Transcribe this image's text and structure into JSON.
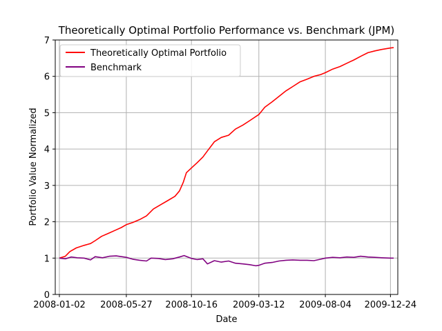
{
  "chart_data": {
    "type": "line",
    "title": "Theoretically Optimal Portfolio Performance vs. Benchmark (JPM)",
    "xlabel": "Date",
    "ylabel": "Portfolio Value Normalized",
    "xlim": [
      "2008-01-02",
      "2009-12-31"
    ],
    "ylim": [
      0,
      7
    ],
    "grid": true,
    "legend_position": "top-left",
    "x_ticks": [
      "2008-01-02",
      "2008-05-27",
      "2008-10-16",
      "2009-03-12",
      "2009-08-04",
      "2009-12-24"
    ],
    "y_ticks": [
      "0",
      "1",
      "2",
      "3",
      "4",
      "5",
      "6",
      "7"
    ],
    "series": [
      {
        "name": "Theoretically Optimal Portfolio",
        "color": "#ff0000",
        "points": [
          [
            "2008-01-02",
            1.0
          ],
          [
            "2008-01-15",
            1.05
          ],
          [
            "2008-01-25",
            1.18
          ],
          [
            "2008-02-08",
            1.28
          ],
          [
            "2008-02-25",
            1.35
          ],
          [
            "2008-03-10",
            1.4
          ],
          [
            "2008-03-20",
            1.48
          ],
          [
            "2008-04-03",
            1.6
          ],
          [
            "2008-04-18",
            1.68
          ],
          [
            "2008-05-02",
            1.76
          ],
          [
            "2008-05-16",
            1.84
          ],
          [
            "2008-05-27",
            1.92
          ],
          [
            "2008-06-10",
            1.98
          ],
          [
            "2008-06-25",
            2.06
          ],
          [
            "2008-07-10",
            2.16
          ],
          [
            "2008-07-25",
            2.35
          ],
          [
            "2008-08-10",
            2.47
          ],
          [
            "2008-08-25",
            2.58
          ],
          [
            "2008-09-10",
            2.7
          ],
          [
            "2008-09-20",
            2.85
          ],
          [
            "2008-09-28",
            3.08
          ],
          [
            "2008-10-05",
            3.35
          ],
          [
            "2008-10-16",
            3.48
          ],
          [
            "2008-10-28",
            3.62
          ],
          [
            "2008-11-10",
            3.78
          ],
          [
            "2008-11-20",
            3.95
          ],
          [
            "2008-12-05",
            4.2
          ],
          [
            "2008-12-20",
            4.32
          ],
          [
            "2009-01-05",
            4.38
          ],
          [
            "2009-01-20",
            4.55
          ],
          [
            "2009-02-05",
            4.66
          ],
          [
            "2009-02-20",
            4.78
          ],
          [
            "2009-03-12",
            4.95
          ],
          [
            "2009-03-25",
            5.15
          ],
          [
            "2009-04-10",
            5.3
          ],
          [
            "2009-04-25",
            5.45
          ],
          [
            "2009-05-10",
            5.6
          ],
          [
            "2009-05-25",
            5.72
          ],
          [
            "2009-06-10",
            5.85
          ],
          [
            "2009-06-25",
            5.92
          ],
          [
            "2009-07-10",
            6.0
          ],
          [
            "2009-07-25",
            6.05
          ],
          [
            "2009-08-04",
            6.1
          ],
          [
            "2009-08-20",
            6.2
          ],
          [
            "2009-09-05",
            6.27
          ],
          [
            "2009-09-20",
            6.36
          ],
          [
            "2009-10-05",
            6.45
          ],
          [
            "2009-10-20",
            6.55
          ],
          [
            "2009-11-05",
            6.65
          ],
          [
            "2009-11-20",
            6.7
          ],
          [
            "2009-12-05",
            6.74
          ],
          [
            "2009-12-24",
            6.78
          ],
          [
            "2009-12-31",
            6.79
          ]
        ]
      },
      {
        "name": "Benchmark",
        "color": "#800080",
        "points": [
          [
            "2008-01-02",
            1.0
          ],
          [
            "2008-01-15",
            0.98
          ],
          [
            "2008-01-28",
            1.03
          ],
          [
            "2008-02-10",
            1.01
          ],
          [
            "2008-02-25",
            1.0
          ],
          [
            "2008-03-10",
            0.95
          ],
          [
            "2008-03-20",
            1.04
          ],
          [
            "2008-04-05",
            1.01
          ],
          [
            "2008-04-20",
            1.05
          ],
          [
            "2008-05-05",
            1.06
          ],
          [
            "2008-05-27",
            1.02
          ],
          [
            "2008-06-10",
            0.97
          ],
          [
            "2008-06-25",
            0.94
          ],
          [
            "2008-07-10",
            0.92
          ],
          [
            "2008-07-20",
            1.0
          ],
          [
            "2008-08-05",
            0.99
          ],
          [
            "2008-08-20",
            0.96
          ],
          [
            "2008-09-05",
            0.98
          ],
          [
            "2008-09-20",
            1.03
          ],
          [
            "2008-09-30",
            1.07
          ],
          [
            "2008-10-16",
            0.99
          ],
          [
            "2008-10-28",
            0.96
          ],
          [
            "2008-11-10",
            0.98
          ],
          [
            "2008-11-20",
            0.84
          ],
          [
            "2008-12-05",
            0.93
          ],
          [
            "2008-12-20",
            0.89
          ],
          [
            "2009-01-05",
            0.92
          ],
          [
            "2009-01-20",
            0.86
          ],
          [
            "2009-02-05",
            0.84
          ],
          [
            "2009-02-20",
            0.82
          ],
          [
            "2009-03-05",
            0.79
          ],
          [
            "2009-03-12",
            0.8
          ],
          [
            "2009-03-25",
            0.86
          ],
          [
            "2009-04-10",
            0.88
          ],
          [
            "2009-04-25",
            0.92
          ],
          [
            "2009-05-10",
            0.94
          ],
          [
            "2009-05-25",
            0.95
          ],
          [
            "2009-06-10",
            0.94
          ],
          [
            "2009-06-25",
            0.94
          ],
          [
            "2009-07-10",
            0.93
          ],
          [
            "2009-07-25",
            0.97
          ],
          [
            "2009-08-04",
            1.0
          ],
          [
            "2009-08-20",
            1.02
          ],
          [
            "2009-09-05",
            1.01
          ],
          [
            "2009-09-20",
            1.03
          ],
          [
            "2009-10-05",
            1.02
          ],
          [
            "2009-10-20",
            1.05
          ],
          [
            "2009-11-05",
            1.03
          ],
          [
            "2009-11-20",
            1.02
          ],
          [
            "2009-12-05",
            1.01
          ],
          [
            "2009-12-24",
            1.0
          ],
          [
            "2009-12-31",
            1.0
          ]
        ]
      }
    ]
  }
}
